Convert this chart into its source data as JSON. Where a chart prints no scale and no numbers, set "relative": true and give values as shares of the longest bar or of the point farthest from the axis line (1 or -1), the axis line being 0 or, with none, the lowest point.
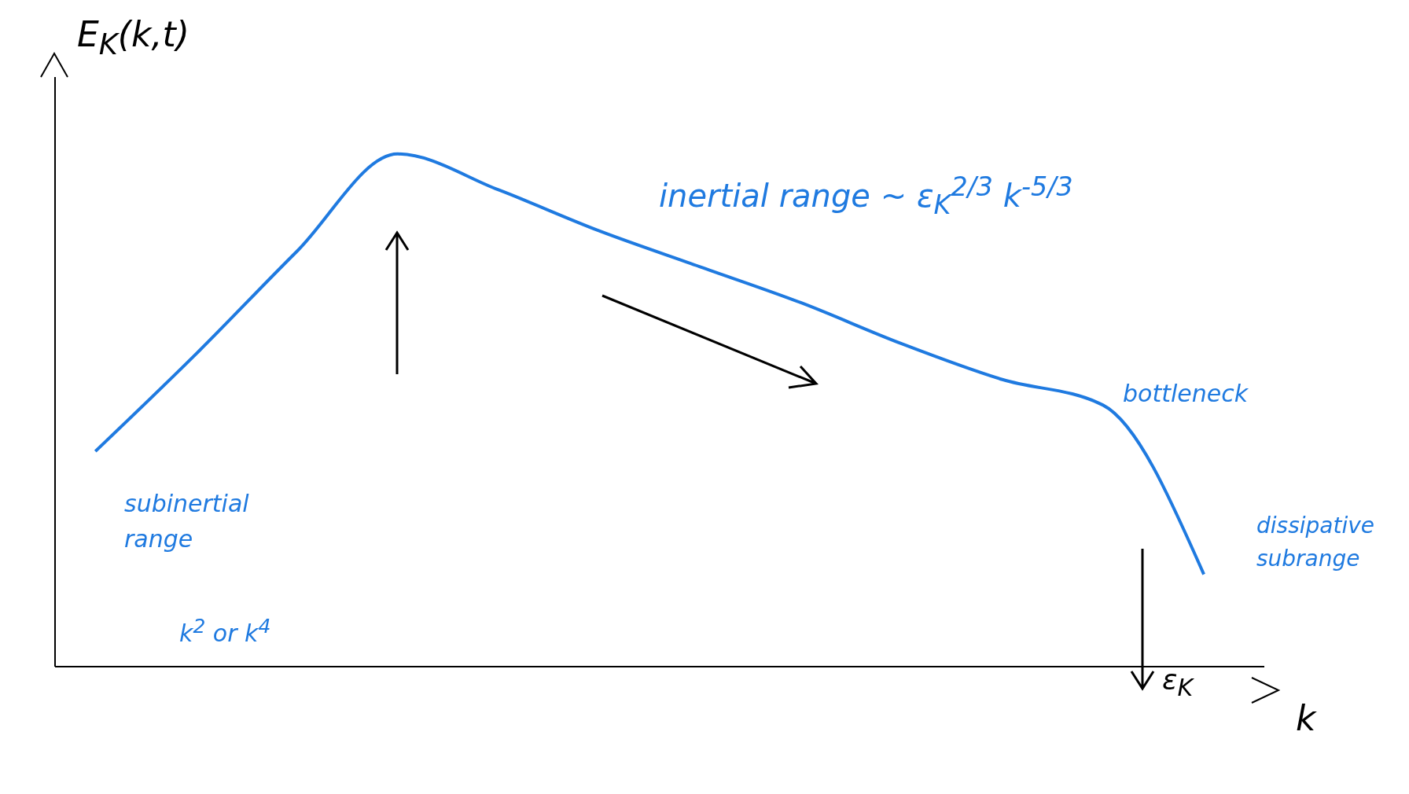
{
  "chart_data": {
    "type": "line",
    "relative": true,
    "ylabel": "E$_{K}$(k,t)",
    "xlabel": "k",
    "categories": [
      null,
      null,
      null,
      null,
      null,
      null,
      null,
      null,
      null,
      null,
      null,
      null
    ],
    "series": [
      {
        "color": "#1f7ae0",
        "values": [
          0.42,
          0.61,
          0.81,
          1,
          0.93,
          0.85,
          0.78,
          0.71,
          0.63,
          0.56,
          0.51,
          0.18
        ]
      }
    ],
    "annotations": [
      "inertial range  ~  ε$_{K}$$^{2/3}$ k$^{-5/3}$",
      "bottleneck",
      "subinertial range",
      "k$^{2}$ or k$^{4}$",
      "dissipative subrange",
      "ε$_{K}$"
    ],
    "grid": false,
    "legend": false,
    "marker": "none",
    "line_style": "solid"
  }
}
